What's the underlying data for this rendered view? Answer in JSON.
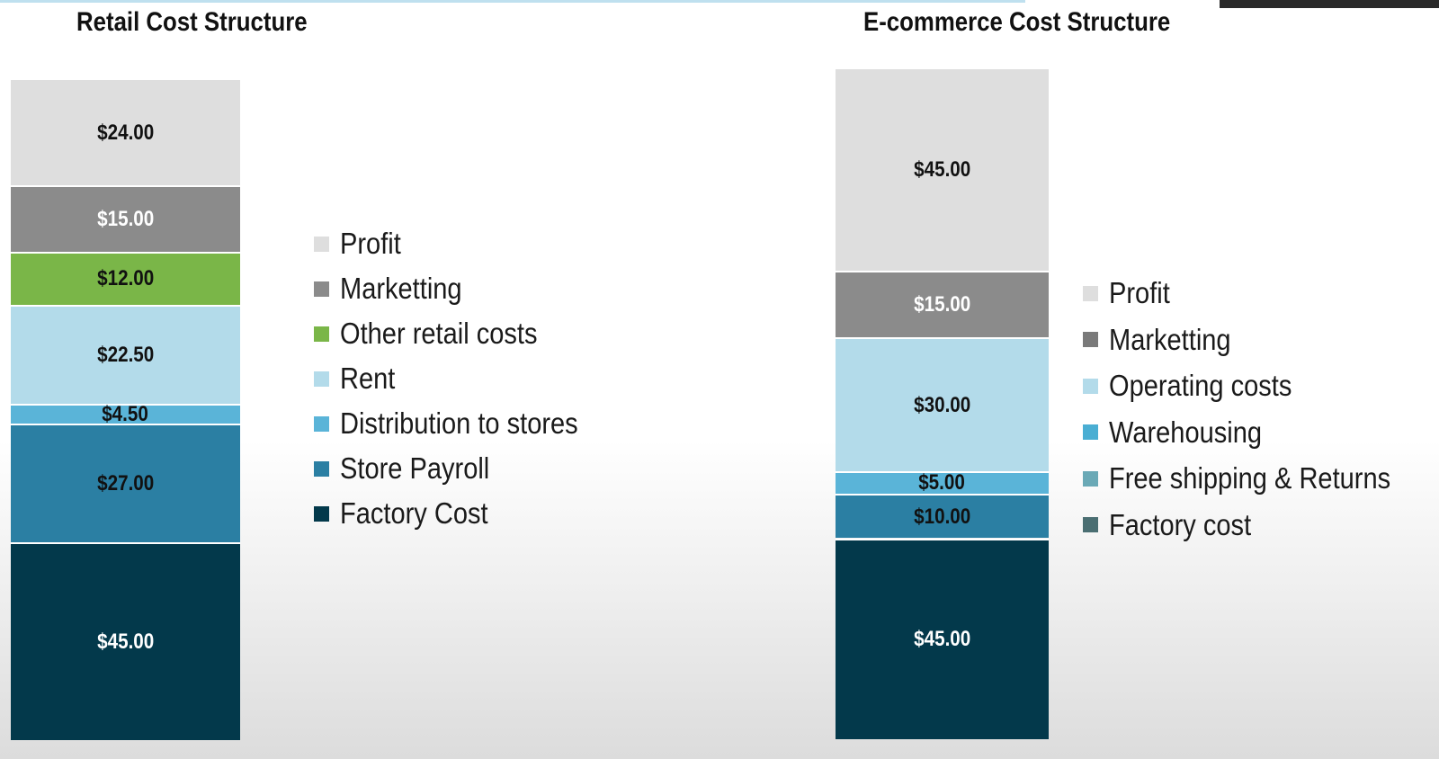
{
  "chart_data": [
    {
      "type": "bar",
      "title": "Retail Cost Structure",
      "total": 150,
      "series": [
        {
          "name": "Profit",
          "value": 24.0,
          "label": "$24.00",
          "color": "#dedede",
          "label_color": "#111111"
        },
        {
          "name": "Marketting",
          "value": 15.0,
          "label": "$15.00",
          "color": "#8b8b8b",
          "label_color": "#ffffff"
        },
        {
          "name": "Other retail costs",
          "value": 12.0,
          "label": "$12.00",
          "color": "#7ab648",
          "label_color": "#111111"
        },
        {
          "name": "Rent",
          "value": 22.5,
          "label": "$22.50",
          "color": "#b3dbea",
          "label_color": "#111111"
        },
        {
          "name": "Distribution to stores",
          "value": 4.5,
          "label": "$4.50",
          "color": "#5ab4d8",
          "label_color": "#111111"
        },
        {
          "name": "Store Payroll",
          "value": 27.0,
          "label": "$27.00",
          "color": "#2b7fa3",
          "label_color": "#111111"
        },
        {
          "name": "Factory Cost",
          "value": 45.0,
          "label": "$45.00",
          "color": "#03394b",
          "label_color": "#ffffff"
        }
      ]
    },
    {
      "type": "bar",
      "title": "E-commerce Cost Structure",
      "total": 150,
      "series": [
        {
          "name": "Profit",
          "value": 45.0,
          "label": "$45.00",
          "color": "#dedede",
          "label_color": "#111111"
        },
        {
          "name": "Marketting",
          "value": 15.0,
          "label": "$15.00",
          "color": "#8b8b8b",
          "label_color": "#ffffff"
        },
        {
          "name": "Operating costs",
          "value": 30.0,
          "label": "$30.00",
          "color": "#b3dbea",
          "label_color": "#111111"
        },
        {
          "name": "Warehousing",
          "value": 5.0,
          "label": "$5.00",
          "color": "#5ab4d8",
          "label_color": "#111111"
        },
        {
          "name": "Free shipping & Returns",
          "value": 10.0,
          "label": "$10.00",
          "color": "#2b7fa3",
          "label_color": "#111111"
        },
        {
          "name": "Factory cost",
          "value": 45.0,
          "label": "$45.00",
          "color": "#03394b",
          "label_color": "#ffffff"
        }
      ],
      "legend_colors": [
        "#dedede",
        "#7a7a7a",
        "#b3dbea",
        "#4aaed3",
        "#6aa9b6",
        "#4a6e72"
      ]
    }
  ]
}
